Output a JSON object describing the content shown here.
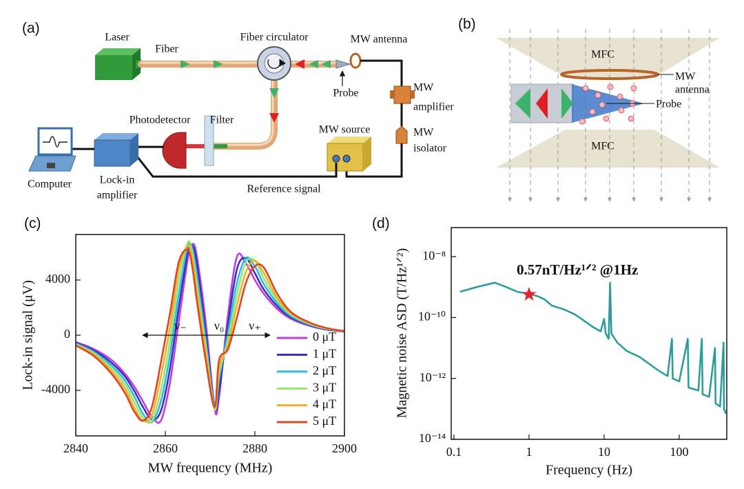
{
  "diagram_a": {
    "label": "(a)",
    "laser": "Laser",
    "fiber": "Fiber",
    "fiber_circulator": "Fiber circulator",
    "mw_antenna": "MW antenna",
    "probe": "Probe",
    "mw_amplifier": [
      "MW",
      "amplifier"
    ],
    "photodetector": "Photodetector",
    "filter": "Filter",
    "mw_source": "MW source",
    "mw_isolator": [
      "MW",
      "isolator"
    ],
    "computer": "Computer",
    "lock_in_amplifier": [
      "Lock-in",
      "amplifier"
    ],
    "reference_signal": "Reference signal"
  },
  "diagram_b": {
    "label": "(b)",
    "mfc_top": "MFC",
    "mfc_bottom": "MFC",
    "mw_antenna": [
      "MW",
      "antenna"
    ],
    "probe": "Probe"
  },
  "chart_data": [
    {
      "type": "line",
      "panel_label": "(c)",
      "x_label": "MW frequency (MHz)",
      "y_label": "Lock-in signal (μV)",
      "annotations": [
        "ν₋",
        "ν₀",
        "ν₊"
      ],
      "xlim": [
        2840,
        2900
      ],
      "xticks": [
        2840,
        2860,
        2880,
        2900
      ],
      "ylim": [
        -7300,
        7300
      ],
      "yticks": [
        -4000,
        0,
        4000
      ],
      "legend": "lower right",
      "x": [
        2840,
        2844,
        2848,
        2851,
        2853,
        2855,
        2857,
        2859,
        2861,
        2863,
        2865,
        2866,
        2867,
        2869,
        2871,
        2872,
        2874,
        2876,
        2878,
        2880,
        2882,
        2885,
        2888,
        2892,
        2896,
        2900
      ],
      "series": [
        {
          "name": "0 μT",
          "color": "#c03ce0",
          "values": [
            -500,
            -1000,
            -1800,
            -2800,
            -3700,
            -4800,
            -5900,
            -6200,
            -3500,
            1000,
            5500,
            6600,
            5800,
            1000,
            -5300,
            -4500,
            1500,
            5700,
            5200,
            4000,
            3000,
            1900,
            1200,
            700,
            400,
            250
          ]
        },
        {
          "name": "1 μT",
          "color": "#3a2fb8",
          "values": [
            -550,
            -1100,
            -2000,
            -3000,
            -4000,
            -5200,
            -6100,
            -5500,
            -2500,
            2000,
            6000,
            6500,
            5300,
            300,
            -5200,
            -4000,
            800,
            4800,
            5600,
            4500,
            3300,
            2100,
            1300,
            750,
            420,
            260
          ]
        },
        {
          "name": "2 μT",
          "color": "#2fb8e8",
          "values": [
            -600,
            -1200,
            -2200,
            -3300,
            -4400,
            -5700,
            -6300,
            -4800,
            -1500,
            3000,
            6400,
            6300,
            4500,
            -300,
            -5300,
            -3200,
            200,
            3800,
            5600,
            5000,
            3700,
            2300,
            1400,
            800,
            450,
            270
          ]
        },
        {
          "name": "3 μT",
          "color": "#90e870",
          "values": [
            -650,
            -1300,
            -2400,
            -3600,
            -4800,
            -6000,
            -6200,
            -4000,
            -500,
            4000,
            6700,
            6000,
            3800,
            -800,
            -5400,
            -2800,
            -300,
            3000,
            5300,
            5400,
            4100,
            2500,
            1500,
            850,
            480,
            280
          ]
        },
        {
          "name": "4 μT",
          "color": "#f2b02a",
          "values": [
            -700,
            -1400,
            -2600,
            -3900,
            -5200,
            -6200,
            -5800,
            -3000,
            500,
            4800,
            6500,
            5500,
            3200,
            -1200,
            -5300,
            -2300,
            -700,
            2200,
            4600,
            5400,
            4500,
            2700,
            1600,
            900,
            500,
            290
          ]
        },
        {
          "name": "5 μT",
          "color": "#e0461e",
          "values": [
            -750,
            -1500,
            -2800,
            -4200,
            -5500,
            -6200,
            -5200,
            -2000,
            1500,
            5300,
            6200,
            5000,
            2600,
            -1800,
            -5200,
            -1800,
            -1000,
            1300,
            3800,
            5000,
            4900,
            3000,
            1700,
            950,
            520,
            300
          ]
        }
      ]
    },
    {
      "type": "line",
      "panel_label": "(d)",
      "x_label": "Frequency (Hz)",
      "y_label": "Magnetic noise ASD (T/Hz¹ᐟ²)",
      "annotation": "0.57nT/Hz¹ᐟ² @1Hz",
      "xscale": "log",
      "yscale": "log",
      "xlim": [
        0.092,
        430
      ],
      "xticks": [
        0.1,
        1,
        10,
        100
      ],
      "ylim": [
        1e-14,
        9e-08
      ],
      "yticks": [
        {
          "value": 1e-08,
          "label": "10⁻⁸"
        },
        {
          "value": 1e-10,
          "label": "10⁻¹⁰"
        },
        {
          "value": 1e-12,
          "label": "10⁻¹²"
        },
        {
          "value": 1e-14,
          "label": "10⁻¹⁴"
        }
      ],
      "color": "#2a9d9a",
      "x": [
        0.12,
        0.2,
        0.35,
        0.5,
        0.7,
        1,
        1.3,
        1.6,
        2,
        3,
        4,
        5,
        7,
        9,
        10,
        10.5,
        11.5,
        12,
        12.5,
        15,
        20,
        30,
        40,
        50,
        60,
        70,
        80,
        82,
        100,
        130,
        133,
        180,
        200,
        205,
        250,
        300,
        305,
        350,
        390,
        395,
        420
      ],
      "values": [
        7e-10,
        1e-09,
        1.4e-09,
        1e-09,
        7e-10,
        6e-10,
        5e-10,
        4e-10,
        2.5e-10,
        1.8e-10,
        1.3e-10,
        9e-11,
        5e-11,
        3.5e-11,
        9e-11,
        3e-11,
        2e-11,
        1.4e-09,
        3e-11,
        1.5e-11,
        8e-12,
        5e-12,
        3e-12,
        2e-12,
        1.5e-12,
        1.2e-12,
        2e-11,
        1e-12,
        8e-13,
        2e-11,
        5e-13,
        4e-13,
        2e-11,
        3e-13,
        2.5e-13,
        1e-11,
        1.5e-13,
        1.2e-13,
        1.5e-11,
        1e-13,
        7e-14
      ],
      "marker": {
        "x": 1,
        "y": 5.7e-10,
        "color": "#e0262b"
      }
    }
  ]
}
